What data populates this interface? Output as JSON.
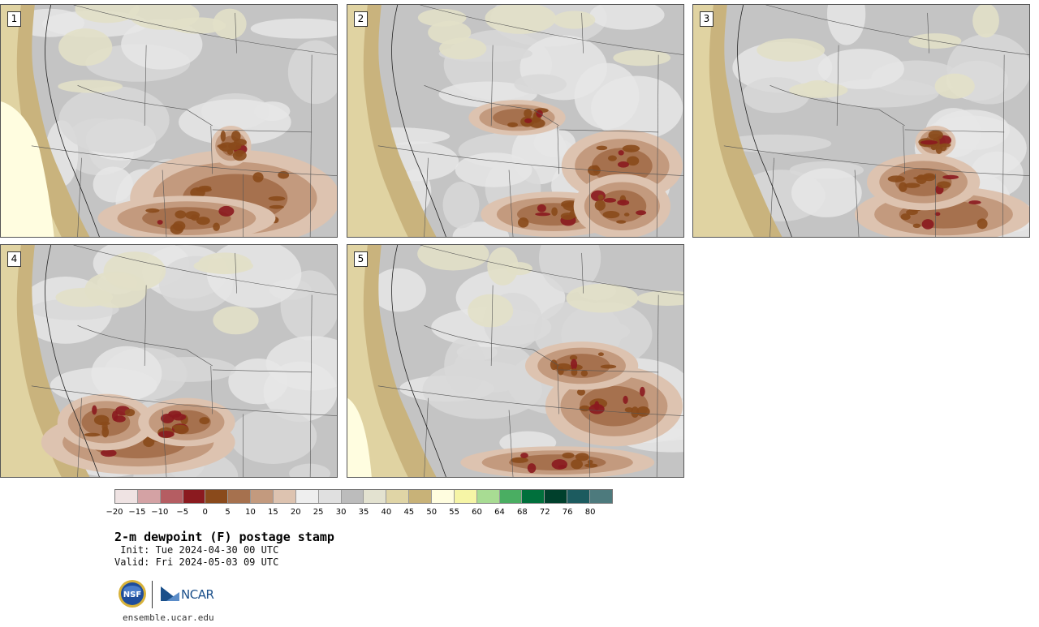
{
  "panels": [
    {
      "label": "1"
    },
    {
      "label": "2"
    },
    {
      "label": "3"
    },
    {
      "label": "4"
    },
    {
      "label": "5"
    }
  ],
  "colorbar": {
    "colors": [
      "#efe3e3",
      "#d4a2a4",
      "#b55d62",
      "#8b1a1f",
      "#8a4a1b",
      "#a6714e",
      "#c39a7e",
      "#ddc3b0",
      "#eeeeee",
      "#e0e0e0",
      "#bcbcbc",
      "#e3e2d0",
      "#e0d5a6",
      "#c8b278",
      "#fffddf",
      "#f6f5a6",
      "#a8dc93",
      "#4aae62",
      "#00703c",
      "#00402c",
      "#1c5b5f",
      "#4d7a7d"
    ],
    "tick_labels": [
      "−20",
      "−15",
      "−10",
      "−5",
      "0",
      "5",
      "10",
      "15",
      "20",
      "25",
      "30",
      "35",
      "40",
      "45",
      "50",
      "55",
      "60",
      "64",
      "68",
      "72",
      "76",
      "80"
    ]
  },
  "title": "2-m dewpoint (F) postage stamp",
  "init": " Init: Tue 2024-04-30 00 UTC",
  "valid": "Valid: Fri 2024-05-03 09 UTC",
  "logos": {
    "nsf": "NSF",
    "ncar": "NCAR"
  },
  "url": "ensemble.ucar.edu"
}
